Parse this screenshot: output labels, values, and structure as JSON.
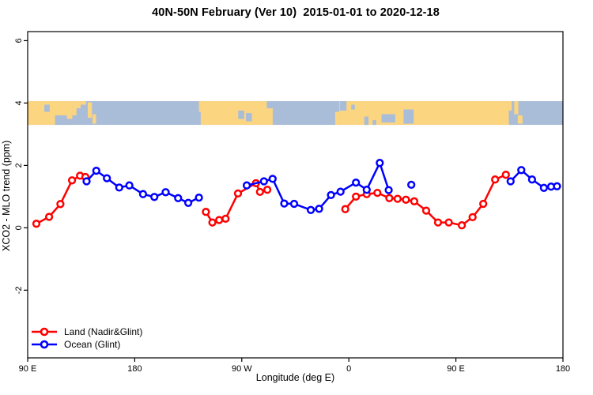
{
  "title": "40N-50N February (Ver 10)  2015-01-01 to 2020-12-18",
  "legend": {
    "items": [
      {
        "label": "Land (Nadir&Glint)",
        "color": "#ff0000"
      },
      {
        "label": "Ocean (Glint)",
        "color": "#0000ff"
      }
    ]
  },
  "colors": {
    "land_series": "#ff0000",
    "ocean_series": "#0000ff",
    "map_land": "#fcd581",
    "map_ocean": "#a9bcd8",
    "axis": "#000000",
    "background": "#ffffff"
  },
  "chart_data": {
    "type": "line",
    "title": "40N-50N February (Ver 10)  2015-01-01 to 2020-12-18",
    "xlabel": "Longitude (deg E)",
    "ylabel": "XCO2 - MLO trend (ppm)",
    "xlim": [
      90,
      540
    ],
    "ylim": [
      -4.17,
      6.29
    ],
    "grid": "off",
    "legend_position": "bottom-left-inside",
    "x_axis_note": "longitude increases eastward from 90E, wrapping 180 -> 90W -> 0 -> 90E -> 180",
    "x_ticks": [
      {
        "value": 90,
        "label": "90 E"
      },
      {
        "value": 180,
        "label": "180"
      },
      {
        "value": 270,
        "label": "90 W"
      },
      {
        "value": 360,
        "label": "0"
      },
      {
        "value": 450,
        "label": "90 E"
      },
      {
        "value": 540,
        "label": "180"
      }
    ],
    "y_ticks": [
      {
        "value": -2,
        "label": "-2"
      },
      {
        "value": 0,
        "label": "0"
      },
      {
        "value": 2,
        "label": "2"
      },
      {
        "value": 4,
        "label": "4"
      },
      {
        "value": 6,
        "label": "6"
      }
    ],
    "series": [
      {
        "name": "Land (Nadir&Glint)",
        "color": "#ff0000",
        "marker": "open-circle",
        "segments": [
          [
            [
              97.3,
              0.13
            ],
            [
              108,
              0.35
            ],
            [
              117.5,
              0.76
            ],
            [
              127.3,
              1.52
            ],
            [
              134,
              1.67
            ],
            [
              138.5,
              1.63
            ]
          ],
          [
            [
              239.8,
              0.51
            ],
            [
              245.3,
              0.17
            ],
            [
              251,
              0.25
            ],
            [
              256.4,
              0.29
            ],
            [
              266.8,
              1.1
            ],
            [
              281.9,
              1.43
            ],
            [
              285.3,
              1.15
            ],
            [
              291.5,
              1.22
            ]
          ],
          [
            [
              357,
              0.6
            ],
            [
              366,
              1.0
            ],
            [
              375,
              1.08
            ],
            [
              384,
              1.12
            ],
            [
              394,
              0.95
            ],
            [
              401,
              0.93
            ],
            [
              408,
              0.9
            ],
            [
              415,
              0.85
            ],
            [
              425,
              0.55
            ],
            [
              435,
              0.17
            ],
            [
              444,
              0.17
            ],
            [
              455,
              0.08
            ],
            [
              464,
              0.34
            ],
            [
              473,
              0.77
            ],
            [
              483,
              1.55
            ],
            [
              492,
              1.7
            ]
          ]
        ],
        "isolated_points": []
      },
      {
        "name": "Ocean (Glint)",
        "color": "#0000ff",
        "marker": "open-circle",
        "segments": [
          [
            [
              139.5,
              1.49
            ],
            [
              147.7,
              1.83
            ],
            [
              156.6,
              1.59
            ],
            [
              167,
              1.29
            ],
            [
              175.5,
              1.36
            ],
            [
              187,
              1.08
            ],
            [
              196.5,
              0.99
            ],
            [
              206,
              1.14
            ],
            [
              216.5,
              0.95
            ],
            [
              225,
              0.8
            ],
            [
              234,
              0.97
            ]
          ],
          [
            [
              274.2,
              1.36
            ],
            [
              288.6,
              1.49
            ],
            [
              295.9,
              1.57
            ],
            [
              305.7,
              0.78
            ],
            [
              314,
              0.77
            ],
            [
              328,
              0.57
            ],
            [
              335,
              0.61
            ],
            [
              345,
              1.05
            ],
            [
              353,
              1.16
            ],
            [
              366,
              1.45
            ],
            [
              375,
              1.22
            ],
            [
              386,
              2.08
            ],
            [
              393.5,
              1.21
            ]
          ],
          [
            [
              496,
              1.49
            ],
            [
              505,
              1.85
            ],
            [
              514,
              1.55
            ],
            [
              524,
              1.28
            ],
            [
              530,
              1.32
            ],
            [
              535,
              1.33
            ]
          ]
        ],
        "isolated_points": [
          [
            412.5,
            1.38
          ]
        ]
      }
    ],
    "map_strip": {
      "description": "world coastline band for 40N-50N drawn across plot",
      "value_range": [
        3.3,
        4.06
      ],
      "ocean_color": "#a9bcd8",
      "land_color": "#fcd581",
      "land_segments": [
        {
          "lon": [
            90,
            127.5
          ],
          "frac": [
            0,
            1
          ]
        },
        {
          "lon": [
            127.5,
            131
          ],
          "frac": [
            0,
            0.6
          ]
        },
        {
          "lon": [
            131,
            134.5
          ],
          "frac": [
            0,
            0.3
          ]
        },
        {
          "lon": [
            134.5,
            139
          ],
          "frac": [
            0,
            0.15
          ]
        },
        {
          "lon": [
            140.5,
            144
          ],
          "frac": [
            0.05,
            0.7
          ]
        },
        {
          "lon": [
            144.5,
            147.5
          ],
          "frac": [
            0.55,
            0.95
          ]
        },
        {
          "lon": [
            234,
            237
          ],
          "frac": [
            0,
            0.45
          ]
        },
        {
          "lon": [
            235.5,
            291
          ],
          "frac": [
            0,
            1
          ]
        },
        {
          "lon": [
            291,
            296
          ],
          "frac": [
            0.3,
            1
          ]
        },
        {
          "lon": [
            348.5,
            352
          ],
          "frac": [
            0.45,
            1
          ]
        },
        {
          "lon": [
            352,
            494.5
          ],
          "frac": [
            0,
            1
          ]
        },
        {
          "lon": [
            494.5,
            497
          ],
          "frac": [
            0,
            0.4
          ]
        },
        {
          "lon": [
            499,
            502.5
          ],
          "frac": [
            0,
            0.55
          ]
        },
        {
          "lon": [
            502,
            506
          ],
          "frac": [
            0.6,
            0.95
          ]
        }
      ],
      "ocean_inlays": [
        {
          "lon": [
            104,
            108.5
          ],
          "frac": [
            0.15,
            0.45
          ]
        },
        {
          "lon": [
            113,
            123
          ],
          "frac": [
            0.6,
            1
          ]
        },
        {
          "lon": [
            123,
            127.5
          ],
          "frac": [
            0.75,
            1
          ]
        },
        {
          "lon": [
            267,
            272
          ],
          "frac": [
            0.4,
            0.75
          ]
        },
        {
          "lon": [
            273.5,
            278.5
          ],
          "frac": [
            0.5,
            0.85
          ]
        },
        {
          "lon": [
            352.5,
            358
          ],
          "frac": [
            0,
            0.4
          ]
        },
        {
          "lon": [
            362,
            365
          ],
          "frac": [
            0.15,
            0.35
          ]
        },
        {
          "lon": [
            373,
            376.5
          ],
          "frac": [
            0.65,
            1
          ]
        },
        {
          "lon": [
            380,
            383
          ],
          "frac": [
            0.8,
            1
          ]
        },
        {
          "lon": [
            387.5,
            399
          ],
          "frac": [
            0.55,
            0.9
          ]
        },
        {
          "lon": [
            406,
            414.5
          ],
          "frac": [
            0.35,
            0.95
          ]
        }
      ]
    }
  }
}
